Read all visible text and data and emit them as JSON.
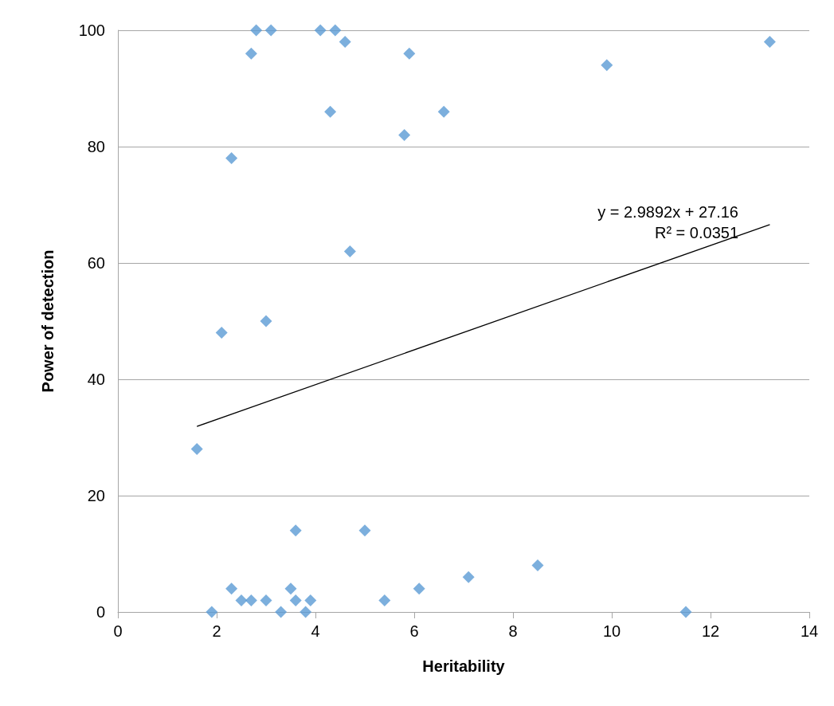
{
  "chart_data": {
    "type": "scatter",
    "xlabel": "Heritability",
    "ylabel": "Power of detection",
    "series": [
      {
        "color": "#5b9bd5",
        "marker": "diamond",
        "x": [
          2.8,
          3.1,
          2.7,
          4.1,
          4.4,
          4.6,
          5.9,
          4.3,
          6.6,
          5.8,
          2.3,
          4.7,
          2.1,
          3.0,
          1.6,
          9.9,
          13.2,
          1.9,
          2.3,
          2.5,
          2.7,
          3.0,
          3.3,
          3.5,
          3.6,
          3.8,
          3.9,
          3.6,
          5.0,
          5.4,
          6.1,
          7.1,
          8.5,
          11.5
        ],
        "values": [
          100,
          100,
          96,
          100,
          100,
          98,
          96,
          86,
          86,
          82,
          78,
          62,
          48,
          50,
          28,
          94,
          98,
          0,
          4,
          2,
          2,
          2,
          0,
          4,
          2,
          0,
          2,
          14,
          14,
          2,
          4,
          6,
          8,
          0
        ]
      },
      {
        "type": "line",
        "color": "#000000",
        "marker": "none",
        "x": [
          1.6,
          13.2
        ],
        "values": [
          31.9,
          66.6
        ]
      }
    ],
    "annotations": [
      "y = 2.9892x + 27.16",
      "R² = 0.0351"
    ],
    "xlim": [
      0,
      14
    ],
    "xticks": [
      0,
      2,
      4,
      6,
      8,
      10,
      12,
      14
    ],
    "ylim": [
      0,
      100
    ],
    "yticks": [
      0,
      20,
      40,
      60,
      80,
      100
    ],
    "grid": "y"
  }
}
